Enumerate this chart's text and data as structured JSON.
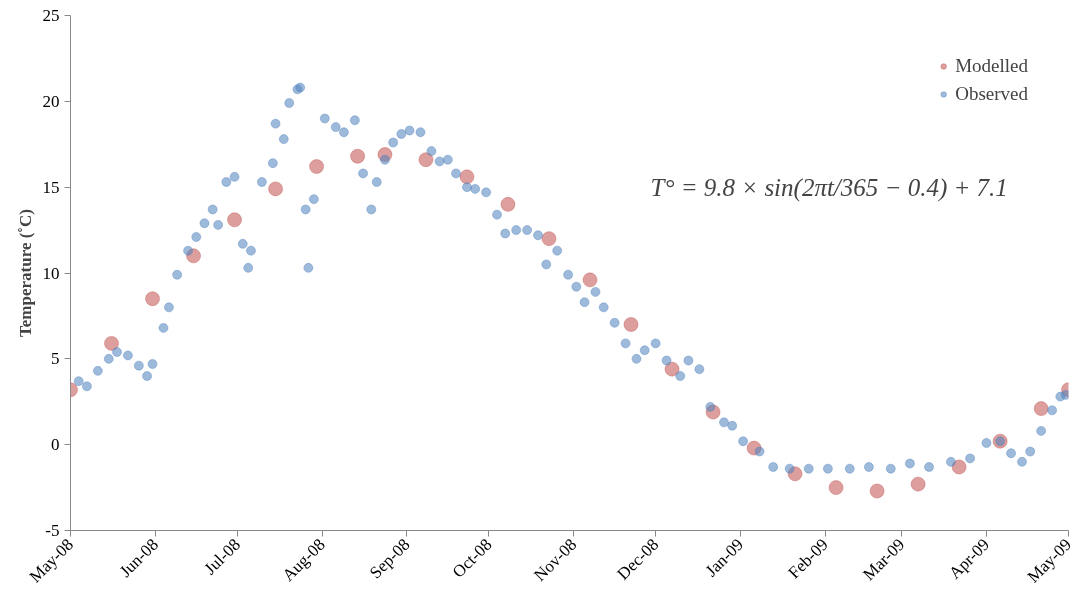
{
  "chart_data": {
    "type": "scatter",
    "ylabel": "Temperature (˚C)",
    "annotations": [
      "T° = 9.8 × sin(2πt/365 − 0.4) + 7.1"
    ],
    "xlim": [
      "2008-05-01",
      "2009-05-01"
    ],
    "xticks": [
      {
        "value": "2008-05-01",
        "label": "May-08"
      },
      {
        "value": "2008-06-01",
        "label": "Jun-08"
      },
      {
        "value": "2008-07-01",
        "label": "Jul-08"
      },
      {
        "value": "2008-08-01",
        "label": "Aug-08"
      },
      {
        "value": "2008-09-01",
        "label": "Sep-08"
      },
      {
        "value": "2008-10-01",
        "label": "Oct-08"
      },
      {
        "value": "2008-11-01",
        "label": "Nov-08"
      },
      {
        "value": "2008-12-01",
        "label": "Dec-08"
      },
      {
        "value": "2009-01-01",
        "label": "Jan-09"
      },
      {
        "value": "2009-02-01",
        "label": "Feb-09"
      },
      {
        "value": "2009-03-01",
        "label": "Mar-09"
      },
      {
        "value": "2009-04-01",
        "label": "Apr-09"
      },
      {
        "value": "2009-05-01",
        "label": "May-09"
      }
    ],
    "ylim": [
      -5,
      25
    ],
    "yticks": [
      -5,
      0,
      5,
      10,
      15,
      20,
      25
    ],
    "grid": false,
    "legend": "top right",
    "marker": "circle",
    "series": [
      {
        "name": "Modelled",
        "color": "#c0504d",
        "x": [
          "2008-05-01",
          "2008-05-16",
          "2008-05-31",
          "2008-06-15",
          "2008-06-30",
          "2008-07-15",
          "2008-07-30",
          "2008-08-14",
          "2008-08-24",
          "2008-09-08",
          "2008-09-23",
          "2008-10-08",
          "2008-10-23",
          "2008-11-07",
          "2008-11-22",
          "2008-12-07",
          "2008-12-22",
          "2009-01-06",
          "2009-01-21",
          "2009-02-05",
          "2009-02-20",
          "2009-03-07",
          "2009-03-22",
          "2009-04-06",
          "2009-04-21",
          "2009-05-01"
        ],
        "values": [
          3.2,
          5.9,
          8.5,
          11.0,
          13.1,
          14.9,
          16.2,
          16.8,
          16.9,
          16.6,
          15.6,
          14.0,
          12.0,
          9.6,
          7.0,
          4.4,
          1.9,
          -0.2,
          -1.7,
          -2.5,
          -2.7,
          -2.3,
          -1.3,
          0.2,
          2.1,
          3.2
        ]
      },
      {
        "name": "Observed",
        "color": "#4f81bd",
        "x": [
          "2008-05-04",
          "2008-05-07",
          "2008-05-11",
          "2008-05-15",
          "2008-05-18",
          "2008-05-22",
          "2008-05-26",
          "2008-05-29",
          "2008-05-31",
          "2008-06-04",
          "2008-06-06",
          "2008-06-09",
          "2008-06-13",
          "2008-06-16",
          "2008-06-19",
          "2008-06-22",
          "2008-06-24",
          "2008-06-27",
          "2008-06-30",
          "2008-07-03",
          "2008-07-05",
          "2008-07-06",
          "2008-07-10",
          "2008-07-14",
          "2008-07-15",
          "2008-07-18",
          "2008-07-20",
          "2008-07-23",
          "2008-07-24",
          "2008-07-26",
          "2008-07-27",
          "2008-07-29",
          "2008-08-02",
          "2008-08-06",
          "2008-08-09",
          "2008-08-13",
          "2008-08-16",
          "2008-08-19",
          "2008-08-21",
          "2008-08-24",
          "2008-08-27",
          "2008-08-30",
          "2008-09-02",
          "2008-09-06",
          "2008-09-10",
          "2008-09-13",
          "2008-09-16",
          "2008-09-19",
          "2008-09-23",
          "2008-09-26",
          "2008-09-30",
          "2008-10-04",
          "2008-10-07",
          "2008-10-11",
          "2008-10-15",
          "2008-10-19",
          "2008-10-22",
          "2008-10-26",
          "2008-10-30",
          "2008-11-02",
          "2008-11-05",
          "2008-11-09",
          "2008-11-12",
          "2008-11-16",
          "2008-11-20",
          "2008-11-24",
          "2008-11-27",
          "2008-12-01",
          "2008-12-05",
          "2008-12-10",
          "2008-12-13",
          "2008-12-17",
          "2008-12-21",
          "2008-12-26",
          "2008-12-29",
          "2009-01-02",
          "2009-01-08",
          "2009-01-13",
          "2009-01-19",
          "2009-01-26",
          "2009-02-02",
          "2009-02-10",
          "2009-02-17",
          "2009-02-25",
          "2009-03-04",
          "2009-03-11",
          "2009-03-19",
          "2009-03-26",
          "2009-04-01",
          "2009-04-06",
          "2009-04-10",
          "2009-04-14",
          "2009-04-17",
          "2009-04-21",
          "2009-04-25",
          "2009-04-28",
          "2009-04-30"
        ],
        "values": [
          3.7,
          3.4,
          4.3,
          5.0,
          5.4,
          5.2,
          4.6,
          4.0,
          4.7,
          6.8,
          8.0,
          9.9,
          11.3,
          12.1,
          12.9,
          13.7,
          12.8,
          15.3,
          15.6,
          11.7,
          10.3,
          11.3,
          15.3,
          16.4,
          18.7,
          17.8,
          19.9,
          20.7,
          20.8,
          13.7,
          10.3,
          14.3,
          19.0,
          18.5,
          18.2,
          18.9,
          15.8,
          13.7,
          15.3,
          16.6,
          17.6,
          18.1,
          18.3,
          18.2,
          17.1,
          16.5,
          16.6,
          15.8,
          15.0,
          14.9,
          14.7,
          13.4,
          12.3,
          12.5,
          12.5,
          12.2,
          10.5,
          11.3,
          9.9,
          9.2,
          8.3,
          8.9,
          8.0,
          7.1,
          5.9,
          5.0,
          5.5,
          5.9,
          4.9,
          4.0,
          4.9,
          4.4,
          2.2,
          1.3,
          1.1,
          0.2,
          -0.4,
          -1.3,
          -1.4,
          -1.4,
          -1.4,
          -1.4,
          -1.3,
          -1.4,
          -1.1,
          -1.3,
          -1.0,
          -0.8,
          0.1,
          0.2,
          -0.5,
          -1.0,
          -0.4,
          0.8,
          2.0,
          2.8,
          2.9
        ]
      }
    ]
  }
}
